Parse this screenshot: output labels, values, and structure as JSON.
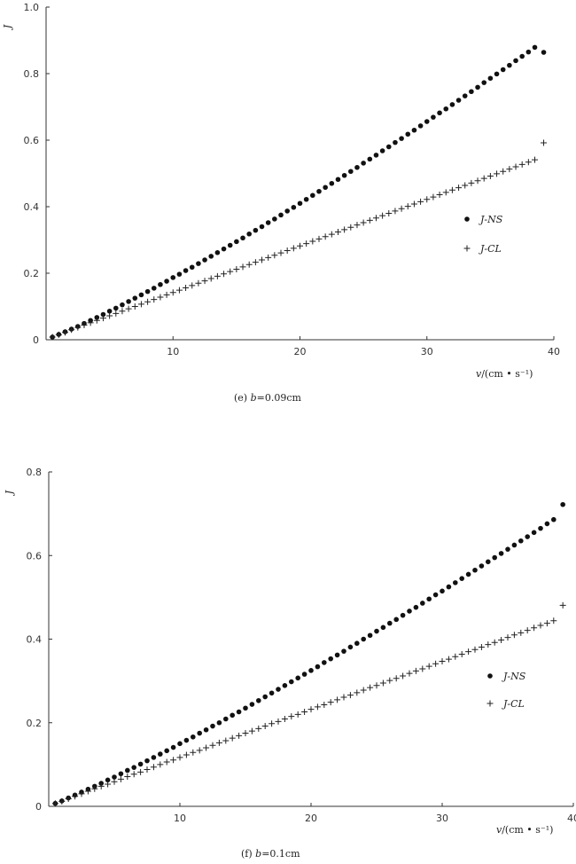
{
  "chart_data": [
    {
      "type": "scatter",
      "caption_prefix": "(e) ",
      "caption_var": "b",
      "caption_value": "=0.09cm",
      "ylabel": "J",
      "xlabel_var": "v",
      "xlabel_unit": "/(cm • s⁻¹)",
      "xlim": [
        0,
        40
      ],
      "ylim": [
        0,
        1.0
      ],
      "xticks": [
        "10",
        "20",
        "30",
        "40"
      ],
      "yticks": [
        "0",
        "0.2",
        "0.4",
        "0.6",
        "0.8",
        "1.0"
      ],
      "legend_placement": "right",
      "series": [
        {
          "name": "J-NS",
          "marker": "dot",
          "x": [
            0.5,
            1.0,
            1.5,
            2.0,
            2.5,
            3.0,
            3.5,
            4.0,
            4.5,
            5.0,
            5.5,
            6.0,
            6.5,
            7.0,
            7.5,
            8.0,
            8.5,
            9.0,
            9.5,
            10.0,
            10.5,
            11.0,
            11.5,
            12.0,
            12.5,
            13.0,
            13.5,
            14.0,
            14.5,
            15.0,
            15.5,
            16.0,
            16.5,
            17.0,
            17.5,
            18.0,
            18.5,
            19.0,
            19.5,
            20.0,
            20.5,
            21.0,
            21.5,
            22.0,
            22.5,
            23.0,
            23.5,
            24.0,
            24.5,
            25.0,
            25.5,
            26.0,
            26.5,
            27.0,
            27.5,
            28.0,
            28.5,
            29.0,
            29.5,
            30.0,
            30.5,
            31.0,
            31.5,
            32.0,
            32.5,
            33.0,
            33.5,
            34.0,
            34.5,
            35.0,
            35.5,
            36.0,
            36.5,
            37.0,
            37.5,
            38.0,
            38.5,
            39.2
          ],
          "y": [
            0.008,
            0.016,
            0.024,
            0.032,
            0.04,
            0.049,
            0.058,
            0.067,
            0.076,
            0.086,
            0.095,
            0.105,
            0.115,
            0.125,
            0.135,
            0.145,
            0.155,
            0.166,
            0.176,
            0.187,
            0.197,
            0.208,
            0.218,
            0.229,
            0.24,
            0.251,
            0.262,
            0.273,
            0.284,
            0.295,
            0.306,
            0.318,
            0.329,
            0.34,
            0.352,
            0.363,
            0.375,
            0.387,
            0.398,
            0.41,
            0.422,
            0.434,
            0.446,
            0.458,
            0.47,
            0.482,
            0.494,
            0.506,
            0.518,
            0.531,
            0.543,
            0.555,
            0.568,
            0.58,
            0.593,
            0.605,
            0.618,
            0.63,
            0.643,
            0.656,
            0.669,
            0.682,
            0.694,
            0.707,
            0.72,
            0.733,
            0.746,
            0.759,
            0.773,
            0.786,
            0.799,
            0.812,
            0.825,
            0.839,
            0.852,
            0.865,
            0.879,
            0.864
          ]
        },
        {
          "name": "J-CL",
          "marker": "plus",
          "x": [
            0.5,
            1.0,
            1.5,
            2.0,
            2.5,
            3.0,
            3.5,
            4.0,
            4.5,
            5.0,
            5.5,
            6.0,
            6.5,
            7.0,
            7.5,
            8.0,
            8.5,
            9.0,
            9.5,
            10.0,
            10.5,
            11.0,
            11.5,
            12.0,
            12.5,
            13.0,
            13.5,
            14.0,
            14.5,
            15.0,
            15.5,
            16.0,
            16.5,
            17.0,
            17.5,
            18.0,
            18.5,
            19.0,
            19.5,
            20.0,
            20.5,
            21.0,
            21.5,
            22.0,
            22.5,
            23.0,
            23.5,
            24.0,
            24.5,
            25.0,
            25.5,
            26.0,
            26.5,
            27.0,
            27.5,
            28.0,
            28.5,
            29.0,
            29.5,
            30.0,
            30.5,
            31.0,
            31.5,
            32.0,
            32.5,
            33.0,
            33.5,
            34.0,
            34.5,
            35.0,
            35.5,
            36.0,
            36.5,
            37.0,
            37.5,
            38.0,
            38.5,
            39.2
          ],
          "y": [
            0.008,
            0.015,
            0.022,
            0.03,
            0.037,
            0.044,
            0.051,
            0.058,
            0.065,
            0.072,
            0.079,
            0.086,
            0.093,
            0.1,
            0.107,
            0.114,
            0.121,
            0.128,
            0.135,
            0.142,
            0.149,
            0.156,
            0.163,
            0.17,
            0.177,
            0.184,
            0.191,
            0.198,
            0.205,
            0.212,
            0.219,
            0.226,
            0.233,
            0.24,
            0.247,
            0.254,
            0.261,
            0.268,
            0.275,
            0.282,
            0.289,
            0.296,
            0.303,
            0.31,
            0.317,
            0.324,
            0.331,
            0.338,
            0.345,
            0.352,
            0.359,
            0.366,
            0.373,
            0.38,
            0.387,
            0.394,
            0.401,
            0.408,
            0.415,
            0.422,
            0.429,
            0.436,
            0.443,
            0.45,
            0.457,
            0.464,
            0.471,
            0.478,
            0.485,
            0.492,
            0.499,
            0.506,
            0.513,
            0.52,
            0.527,
            0.534,
            0.541,
            0.592
          ]
        }
      ]
    },
    {
      "type": "scatter",
      "caption_prefix": "(f) ",
      "caption_var": "b",
      "caption_value": "=0.1cm",
      "ylabel": "J",
      "xlabel_var": "v",
      "xlabel_unit": "/(cm • s⁻¹)",
      "xlim": [
        0,
        40
      ],
      "ylim": [
        0,
        0.8
      ],
      "xticks": [
        "10",
        "20",
        "30",
        "40"
      ],
      "yticks": [
        "0",
        "0.2",
        "0.4",
        "0.6",
        "0.8"
      ],
      "legend_placement": "right",
      "series": [
        {
          "name": "J-NS",
          "marker": "dot",
          "x": [
            0.5,
            1.0,
            1.5,
            2.0,
            2.5,
            3.0,
            3.5,
            4.0,
            4.5,
            5.0,
            5.5,
            6.0,
            6.5,
            7.0,
            7.5,
            8.0,
            8.5,
            9.0,
            9.5,
            10.0,
            10.5,
            11.0,
            11.5,
            12.0,
            12.5,
            13.0,
            13.5,
            14.0,
            14.5,
            15.0,
            15.5,
            16.0,
            16.5,
            17.0,
            17.5,
            18.0,
            18.5,
            19.0,
            19.5,
            20.0,
            20.5,
            21.0,
            21.5,
            22.0,
            22.5,
            23.0,
            23.5,
            24.0,
            24.5,
            25.0,
            25.5,
            26.0,
            26.5,
            27.0,
            27.5,
            28.0,
            28.5,
            29.0,
            29.5,
            30.0,
            30.5,
            31.0,
            31.5,
            32.0,
            32.5,
            33.0,
            33.5,
            34.0,
            34.5,
            35.0,
            35.5,
            36.0,
            36.5,
            37.0,
            37.5,
            38.0,
            38.5,
            39.2
          ],
          "y": [
            0.007,
            0.013,
            0.02,
            0.027,
            0.034,
            0.041,
            0.048,
            0.055,
            0.063,
            0.07,
            0.078,
            0.086,
            0.093,
            0.101,
            0.109,
            0.117,
            0.125,
            0.133,
            0.141,
            0.15,
            0.158,
            0.166,
            0.175,
            0.183,
            0.192,
            0.2,
            0.209,
            0.218,
            0.226,
            0.235,
            0.244,
            0.253,
            0.262,
            0.271,
            0.28,
            0.289,
            0.298,
            0.307,
            0.316,
            0.325,
            0.334,
            0.344,
            0.353,
            0.362,
            0.371,
            0.381,
            0.39,
            0.4,
            0.409,
            0.419,
            0.428,
            0.438,
            0.447,
            0.457,
            0.467,
            0.476,
            0.486,
            0.496,
            0.506,
            0.515,
            0.525,
            0.535,
            0.545,
            0.555,
            0.565,
            0.575,
            0.585,
            0.595,
            0.605,
            0.615,
            0.625,
            0.635,
            0.645,
            0.655,
            0.665,
            0.676,
            0.686,
            0.722
          ]
        },
        {
          "name": "J-CL",
          "marker": "plus",
          "x": [
            0.5,
            1.0,
            1.5,
            2.0,
            2.5,
            3.0,
            3.5,
            4.0,
            4.5,
            5.0,
            5.5,
            6.0,
            6.5,
            7.0,
            7.5,
            8.0,
            8.5,
            9.0,
            9.5,
            10.0,
            10.5,
            11.0,
            11.5,
            12.0,
            12.5,
            13.0,
            13.5,
            14.0,
            14.5,
            15.0,
            15.5,
            16.0,
            16.5,
            17.0,
            17.5,
            18.0,
            18.5,
            19.0,
            19.5,
            20.0,
            20.5,
            21.0,
            21.5,
            22.0,
            22.5,
            23.0,
            23.5,
            24.0,
            24.5,
            25.0,
            25.5,
            26.0,
            26.5,
            27.0,
            27.5,
            28.0,
            28.5,
            29.0,
            29.5,
            30.0,
            30.5,
            31.0,
            31.5,
            32.0,
            32.5,
            33.0,
            33.5,
            34.0,
            34.5,
            35.0,
            35.5,
            36.0,
            36.5,
            37.0,
            37.5,
            38.0,
            38.5,
            39.2
          ],
          "y": [
            0.007,
            0.012,
            0.018,
            0.024,
            0.03,
            0.036,
            0.042,
            0.048,
            0.053,
            0.059,
            0.065,
            0.071,
            0.077,
            0.082,
            0.088,
            0.094,
            0.1,
            0.106,
            0.111,
            0.117,
            0.123,
            0.129,
            0.134,
            0.14,
            0.146,
            0.152,
            0.157,
            0.163,
            0.169,
            0.175,
            0.18,
            0.186,
            0.192,
            0.198,
            0.203,
            0.209,
            0.215,
            0.22,
            0.226,
            0.232,
            0.238,
            0.243,
            0.249,
            0.255,
            0.261,
            0.266,
            0.272,
            0.278,
            0.284,
            0.289,
            0.295,
            0.301,
            0.306,
            0.312,
            0.318,
            0.324,
            0.329,
            0.335,
            0.341,
            0.347,
            0.352,
            0.358,
            0.364,
            0.37,
            0.375,
            0.381,
            0.387,
            0.392,
            0.398,
            0.404,
            0.41,
            0.415,
            0.421,
            0.427,
            0.433,
            0.438,
            0.444,
            0.481
          ]
        }
      ]
    }
  ]
}
